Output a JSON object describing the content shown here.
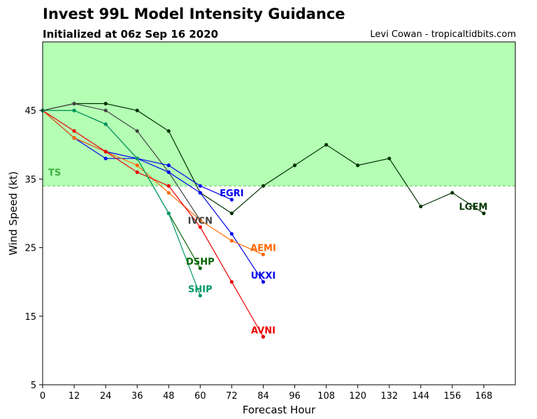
{
  "header": {
    "title": "Invest 99L Model Intensity Guidance",
    "subtitle": "Initialized at 06z Sep 16 2020",
    "credit": "Levi Cowan - tropicaltidbits.com"
  },
  "chart_data": {
    "type": "line",
    "title": "Invest 99L Model Intensity Guidance",
    "subtitle": "Initialized at 06z Sep 16 2020",
    "xlabel": "Forecast Hour",
    "ylabel": "Wind Speed (kt)",
    "xlim": [
      0,
      180
    ],
    "ylim": [
      5,
      55
    ],
    "xticks": [
      0,
      12,
      24,
      36,
      48,
      60,
      72,
      84,
      96,
      108,
      120,
      132,
      144,
      156,
      168
    ],
    "yticks": [
      5,
      15,
      25,
      35,
      45
    ],
    "grid": false,
    "band": {
      "label": "TS",
      "from": 34,
      "to": 55,
      "color": "#b4ffb4",
      "line_color": "#5cc25c",
      "label_color": "#3fae3f"
    },
    "series": [
      {
        "name": "LGEM",
        "color": "#003300",
        "points": [
          [
            0,
            45
          ],
          [
            12,
            46
          ],
          [
            24,
            46
          ],
          [
            36,
            45
          ],
          [
            48,
            42
          ],
          [
            60,
            33
          ],
          [
            72,
            30
          ],
          [
            84,
            34
          ],
          [
            96,
            37
          ],
          [
            108,
            40
          ],
          [
            120,
            37
          ],
          [
            132,
            38
          ],
          [
            144,
            31
          ],
          [
            156,
            33
          ],
          [
            168,
            30
          ]
        ]
      },
      {
        "name": "IVCN",
        "color": "#444444",
        "points": [
          [
            0,
            45
          ],
          [
            12,
            46
          ],
          [
            24,
            45
          ],
          [
            36,
            42
          ],
          [
            48,
            36
          ],
          [
            60,
            29
          ]
        ]
      },
      {
        "name": "EGRI",
        "color": "#0000ee",
        "points": [
          [
            0,
            45
          ],
          [
            12,
            41
          ],
          [
            24,
            39
          ],
          [
            36,
            38
          ],
          [
            48,
            37
          ],
          [
            60,
            34
          ],
          [
            72,
            32
          ]
        ]
      },
      {
        "name": "UKXI",
        "color": "#0000ee",
        "points": [
          [
            0,
            45
          ],
          [
            12,
            41
          ],
          [
            24,
            38
          ],
          [
            36,
            38
          ],
          [
            48,
            36
          ],
          [
            60,
            33
          ],
          [
            72,
            27
          ],
          [
            84,
            20
          ]
        ]
      },
      {
        "name": "AEMI",
        "color": "#ff6600",
        "points": [
          [
            0,
            45
          ],
          [
            12,
            41
          ],
          [
            24,
            39
          ],
          [
            36,
            37
          ],
          [
            48,
            33
          ],
          [
            60,
            29
          ],
          [
            72,
            26
          ],
          [
            84,
            24
          ]
        ]
      },
      {
        "name": "AVNI",
        "color": "#ee0000",
        "points": [
          [
            0,
            45
          ],
          [
            12,
            42
          ],
          [
            24,
            39
          ],
          [
            36,
            36
          ],
          [
            48,
            34
          ],
          [
            60,
            28
          ],
          [
            72,
            20
          ],
          [
            84,
            12
          ]
        ]
      },
      {
        "name": "DSHP",
        "color": "#006600",
        "points": [
          [
            0,
            45
          ],
          [
            12,
            45
          ],
          [
            24,
            43
          ],
          [
            36,
            38
          ],
          [
            48,
            30
          ],
          [
            60,
            22
          ]
        ]
      },
      {
        "name": "SHIP",
        "color": "#009966",
        "points": [
          [
            0,
            45
          ],
          [
            12,
            45
          ],
          [
            24,
            43
          ],
          [
            36,
            38
          ],
          [
            48,
            30
          ],
          [
            60,
            18
          ]
        ]
      }
    ],
    "labels": [
      {
        "text": "LGEM",
        "color": "#003300",
        "x": 164,
        "y": 31
      },
      {
        "text": "IVCN",
        "color": "#444444",
        "x": 60,
        "y": 29
      },
      {
        "text": "EGRI",
        "color": "#0000ee",
        "x": 72,
        "y": 33
      },
      {
        "text": "UKXI",
        "color": "#0000ee",
        "x": 84,
        "y": 21
      },
      {
        "text": "AEMI",
        "color": "#ff6600",
        "x": 84,
        "y": 25
      },
      {
        "text": "AVNI",
        "color": "#ee0000",
        "x": 84,
        "y": 13
      },
      {
        "text": "DSHP",
        "color": "#006600",
        "x": 60,
        "y": 23
      },
      {
        "text": "SHIP",
        "color": "#009966",
        "x": 60,
        "y": 19
      }
    ]
  }
}
